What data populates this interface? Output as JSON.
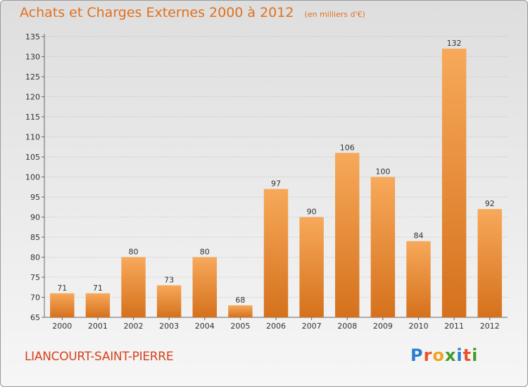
{
  "title": "Achats et Charges Externes 2000 à 2012",
  "subtitle": "(en milliers d'€)",
  "place": "LIANCOURT-SAINT-PIERRE",
  "brand": {
    "letters": [
      "P",
      "r",
      "o",
      "x",
      "i",
      "t",
      "i"
    ],
    "colors": [
      "#2b7fd3",
      "#e8542a",
      "#f2a31c",
      "#3f9d2c",
      "#2b7fd3",
      "#e8542a",
      "#3f9d2c"
    ]
  },
  "colors": {
    "bar_top": "#f7a95a",
    "bar_bottom": "#d5711c",
    "title": "#e0711f",
    "place": "#d8411c"
  },
  "chart_data": {
    "type": "bar",
    "categories": [
      "2000",
      "2001",
      "2002",
      "2003",
      "2004",
      "2005",
      "2006",
      "2007",
      "2008",
      "2009",
      "2010",
      "2011",
      "2012"
    ],
    "values": [
      71,
      71,
      80,
      73,
      80,
      68,
      97,
      90,
      106,
      100,
      84,
      132,
      92
    ],
    "ylim": [
      65,
      135
    ],
    "yticks": [
      65,
      70,
      75,
      80,
      85,
      90,
      95,
      100,
      105,
      110,
      115,
      120,
      125,
      130,
      135
    ],
    "grid": "horizontal",
    "xlabel": "",
    "ylabel": ""
  }
}
